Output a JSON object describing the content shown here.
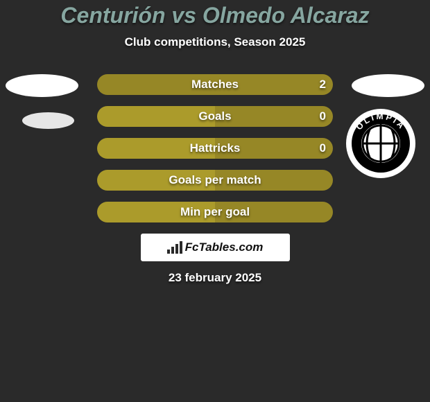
{
  "background_color": "#2a2a2a",
  "title": {
    "text": "Centurión vs Olmedo Alcaraz",
    "color": "#86a6a0",
    "fontsize": 32
  },
  "subtitle": {
    "text": "Club competitions, Season 2025",
    "color": "#ffffff",
    "fontsize": 17
  },
  "date": {
    "text": "23 february 2025",
    "color": "#ffffff",
    "fontsize": 17
  },
  "players": {
    "left_color": "#ffffff",
    "right_color": "#ffffff",
    "oval_secondary_color": "#e6e6e6",
    "crest": {
      "outer": "#ffffff",
      "ring": "#000000",
      "text": "OLIMPIA",
      "text_color": "#ffffff"
    }
  },
  "bars": {
    "height": 30,
    "border_radius": 15,
    "left_color": "#ab9b2b",
    "right_color": "#968726",
    "label_color": "#ffffff",
    "label_fontsize": 17,
    "value_fontsize": 17,
    "rows": [
      {
        "label": "Matches",
        "left_value": "",
        "right_value": "2",
        "left_pct": 0,
        "right_pct": 100
      },
      {
        "label": "Goals",
        "left_value": "",
        "right_value": "0",
        "left_pct": 50,
        "right_pct": 50
      },
      {
        "label": "Hattricks",
        "left_value": "",
        "right_value": "0",
        "left_pct": 50,
        "right_pct": 50
      },
      {
        "label": "Goals per match",
        "left_value": "",
        "right_value": "",
        "left_pct": 50,
        "right_pct": 50
      },
      {
        "label": "Min per goal",
        "left_value": "",
        "right_value": "",
        "left_pct": 50,
        "right_pct": 50
      }
    ]
  },
  "branding": {
    "text": "FcTables.com",
    "icon_color": "#2a2a2a",
    "text_color": "#111111"
  }
}
